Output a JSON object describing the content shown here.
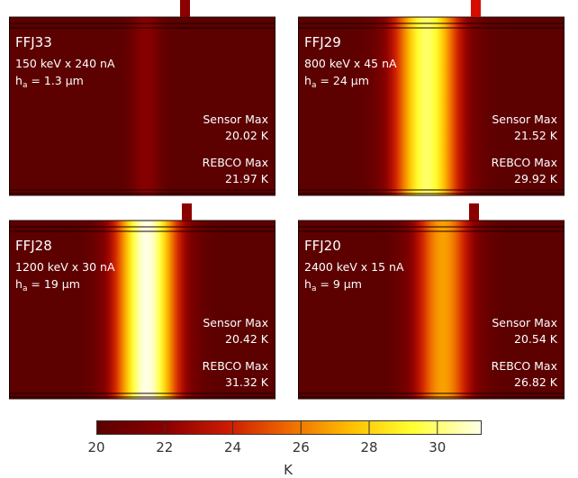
{
  "panels": [
    {
      "id": "FFJ33",
      "beam": "150 keV x 240 nA",
      "ha_prefix": "h",
      "ha_sub": "a",
      "ha_value": " = 1.3 μm",
      "sensor_label": "Sensor Max",
      "sensor_value": "20.02 K",
      "rebco_label": "REBCO Max",
      "rebco_value": "21.97 K",
      "peak_temp": 21.97
    },
    {
      "id": "FFJ29",
      "beam": "800 keV x 45 nA",
      "ha_prefix": "h",
      "ha_sub": "a",
      "ha_value": " = 24 μm",
      "sensor_label": "Sensor Max",
      "sensor_value": "21.52 K",
      "rebco_label": "REBCO Max",
      "rebco_value": "29.92 K",
      "peak_temp": 29.92
    },
    {
      "id": "FFJ28",
      "beam": "1200 keV x 30 nA",
      "ha_prefix": "h",
      "ha_sub": "a",
      "ha_value": " = 19 μm",
      "sensor_label": "Sensor Max",
      "sensor_value": "20.42 K",
      "rebco_label": "REBCO Max",
      "rebco_value": "31.32 K",
      "peak_temp": 31.32
    },
    {
      "id": "FFJ20",
      "beam": "2400 keV x 15 nA",
      "ha_prefix": "h",
      "ha_sub": "a",
      "ha_value": " = 9 μm",
      "sensor_label": "Sensor Max",
      "sensor_value": "20.54 K",
      "rebco_label": "REBCO Max",
      "rebco_value": "26.82 K",
      "peak_temp": 26.82
    }
  ],
  "colorbar": {
    "min": 20,
    "max": 31.3,
    "ticks": [
      "20",
      "22",
      "24",
      "26",
      "28",
      "30"
    ],
    "unit": "K"
  }
}
